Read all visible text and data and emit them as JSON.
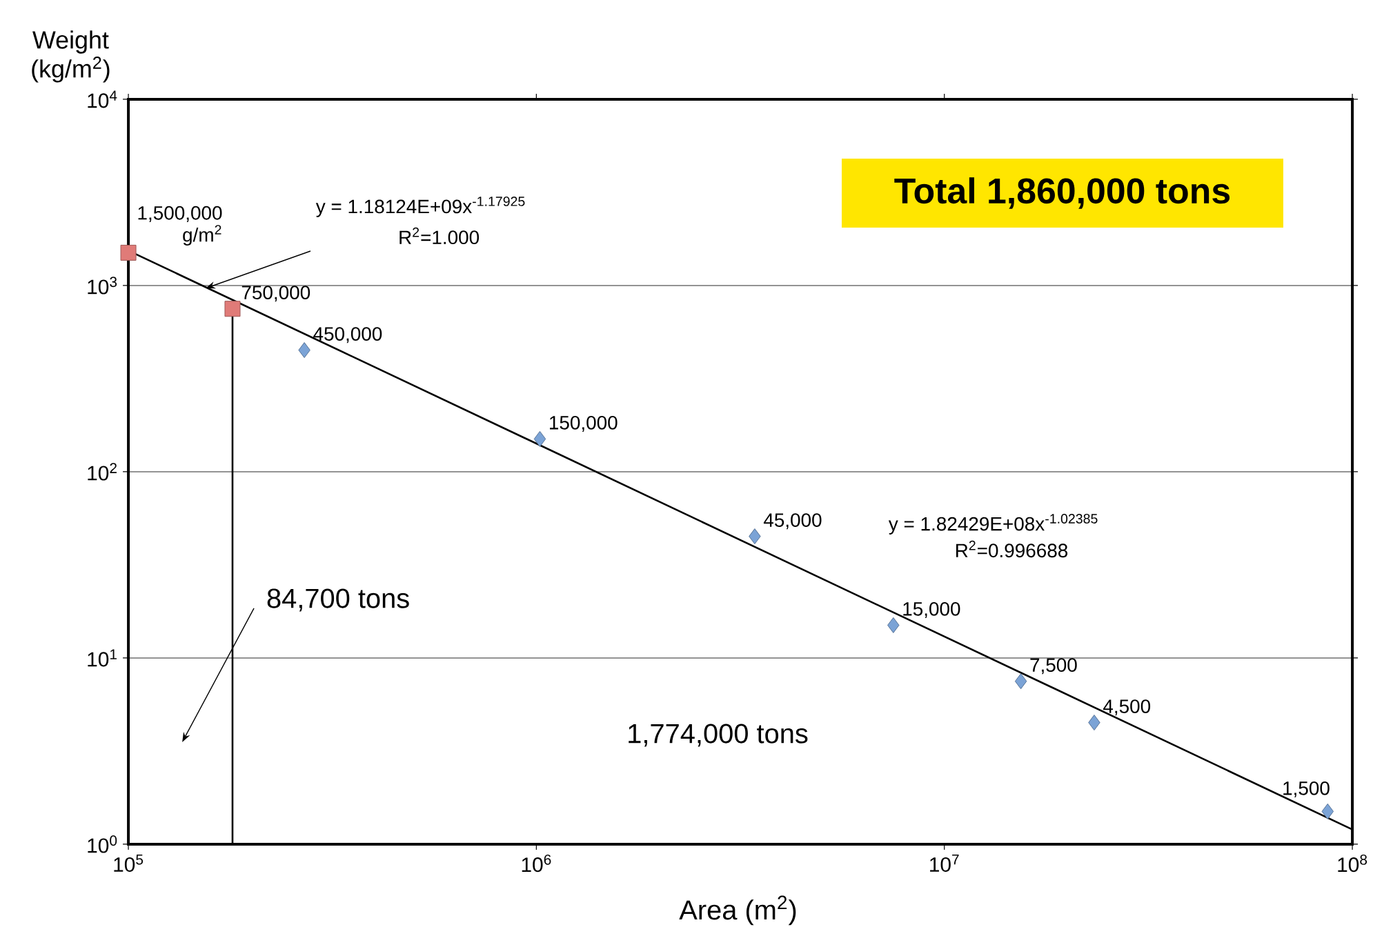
{
  "chart_data": {
    "type": "scatter",
    "xlabel": "Area (m$^{2}$)",
    "ylabel": "Weight (kg/m$^{2}$)",
    "log": "xy",
    "grid": "y",
    "xlim": [
      100000,
      100000000
    ],
    "ylim": [
      1,
      10000
    ],
    "xticks": [
      {
        "value": 100000,
        "label": "10$^{5}$"
      },
      {
        "value": 1000000,
        "label": "10$^{6}$"
      },
      {
        "value": 10000000,
        "label": "10$^{7}$"
      },
      {
        "value": 100000000,
        "label": "10$^{8}$"
      }
    ],
    "yticks": [
      {
        "value": 1,
        "label": "10$^{0}$"
      },
      {
        "value": 10,
        "label": "10$^{1}$"
      },
      {
        "value": 100,
        "label": "10$^{2}$"
      },
      {
        "value": 1000,
        "label": "10$^{3}$"
      },
      {
        "value": 10000,
        "label": "10$^{4}$"
      }
    ],
    "series": [
      {
        "type": "line",
        "color": "#000000",
        "marker": "none",
        "line_style": "solid",
        "x": [
          100000,
          100000000
        ],
        "values": [
          1540,
          1.2
        ]
      },
      {
        "type": "line",
        "color": "#000000",
        "marker": "none",
        "line_style": "solid",
        "x": [
          180000,
          180000
        ],
        "values": [
          1,
          750
        ]
      },
      {
        "color": "#e07b78",
        "marker": "square",
        "x": [
          100000,
          180000
        ],
        "values": [
          1500,
          750
        ]
      },
      {
        "color": "#7ba3d6",
        "marker": "diamond",
        "x": [
          270000,
          1020000,
          3430000,
          7500000,
          15400000,
          23300000,
          87000000
        ],
        "values": [
          450,
          150,
          45,
          15,
          7.5,
          4.5,
          1.5
        ]
      }
    ],
    "annotations": [
      "y = 1.18124E+09x$^{-1.17925}$",
      "R$^{2}$=1.000",
      "y = 1.82429E+08x$^{-1.02385}$",
      "R$^{2}$=0.996688",
      "84,700 tons",
      "1,774,000 tons",
      "Total 1,860,000 tons",
      {
        "text": "1,500,000 g/m$^{2}$",
        "x": 100000,
        "y": 1500
      },
      {
        "text": "750,000",
        "x": 180000,
        "y": 750
      },
      {
        "text": "450,000",
        "x": 270000,
        "y": 450
      },
      {
        "text": "150,000",
        "x": 1020000,
        "y": 150
      },
      {
        "text": "45,000",
        "x": 3430000,
        "y": 45
      },
      {
        "text": "15,000",
        "x": 7500000,
        "y": 15
      },
      {
        "text": "7,500",
        "x": 15400000,
        "y": 7.5
      },
      {
        "text": "4,500",
        "x": 23300000,
        "y": 4.5
      },
      {
        "text": "1,500",
        "x": 87000000,
        "y": 1.5
      }
    ]
  }
}
